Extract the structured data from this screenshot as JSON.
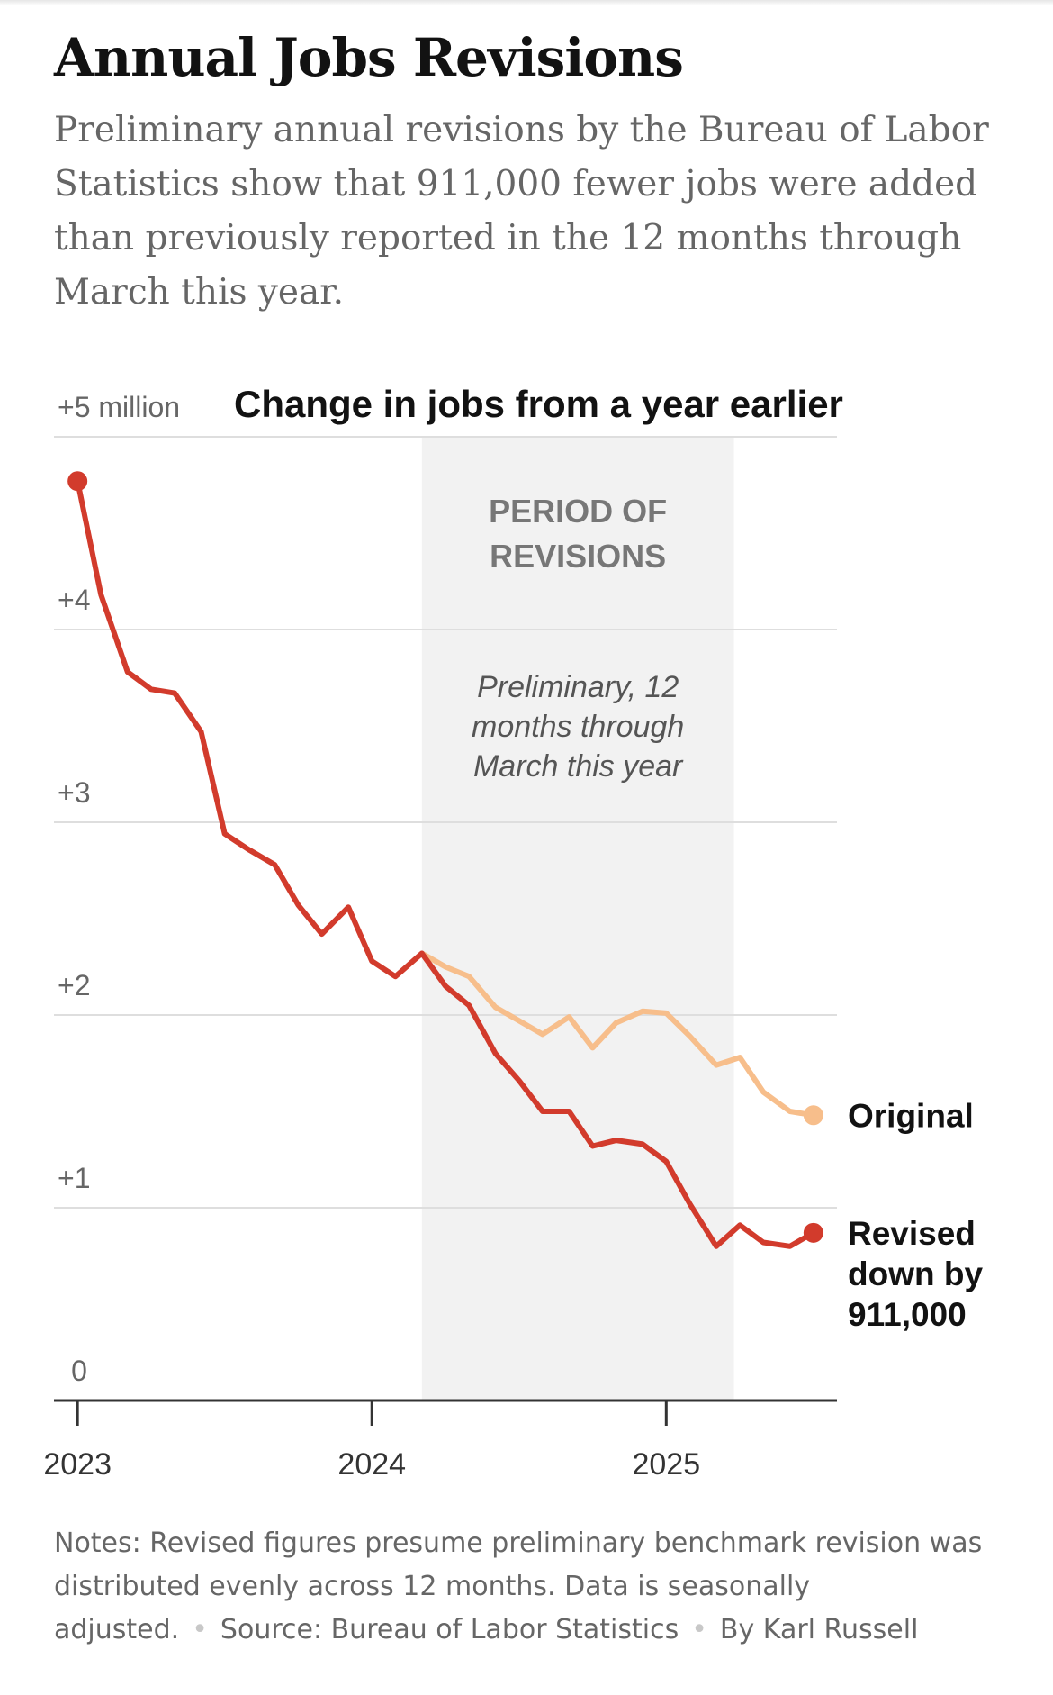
{
  "title": "Annual Jobs Revisions",
  "subtitle": "Preliminary annual revisions by the Bureau of Labor Statistics show that 911,000 fewer jobs were added than previously reported in the 12 months through March this year.",
  "notes": "Notes: Revised figures presume preliminary benchmark revision was distributed evenly across 12 months. Data is seasonally adjusted.",
  "source": "Source: Bureau of Labor Statistics",
  "byline": "By Karl Russell",
  "colors": {
    "revised": "#d23b2c",
    "original": "#f7be8b",
    "shade": "#f2f2f2",
    "grid": "#dedede",
    "axis": "#333333",
    "text": "#666666"
  },
  "chart_data": {
    "type": "line",
    "title": "Change in jobs from a year earlier",
    "ylim": [
      0,
      5
    ],
    "y_ticks": [
      {
        "value": 0,
        "label": "0"
      },
      {
        "value": 1,
        "label": "+1"
      },
      {
        "value": 2,
        "label": "+2"
      },
      {
        "value": 3,
        "label": "+3"
      },
      {
        "value": 4,
        "label": "+4"
      },
      {
        "value": 5,
        "label": "+5 million"
      }
    ],
    "x_range": [
      2022.92,
      2025.58
    ],
    "x_ticks": [
      {
        "value": 2023,
        "label": "2023"
      },
      {
        "value": 2024,
        "label": "2024"
      },
      {
        "value": 2025,
        "label": "2025"
      }
    ],
    "shaded_period": {
      "x_start": 2024.17,
      "x_end": 2025.23,
      "label_line1": "PERIOD OF",
      "label_line2": "REVISIONS",
      "note_line1": "Preliminary, 12",
      "note_line2": "months through",
      "note_line3": "March this year"
    },
    "series": [
      {
        "name": "Original",
        "label_lines": [
          "Original"
        ],
        "color": "#f7be8b",
        "x": [
          2024.17,
          2024.25,
          2024.33,
          2024.42,
          2024.5,
          2024.58,
          2024.67,
          2024.75,
          2024.83,
          2024.92,
          2025.0,
          2025.08,
          2025.17,
          2025.25,
          2025.33,
          2025.42,
          2025.5
        ],
        "y": [
          2.32,
          2.25,
          2.2,
          2.04,
          1.97,
          1.9,
          1.99,
          1.83,
          1.96,
          2.02,
          2.01,
          1.89,
          1.74,
          1.78,
          1.6,
          1.5,
          1.48
        ]
      },
      {
        "name": "Revised",
        "label_lines": [
          "Revised",
          "down by",
          "911,000"
        ],
        "color": "#d23b2c",
        "x": [
          2023.0,
          2023.08,
          2023.17,
          2023.25,
          2023.33,
          2023.42,
          2023.5,
          2023.58,
          2023.67,
          2023.75,
          2023.83,
          2023.92,
          2024.0,
          2024.08,
          2024.17,
          2024.25,
          2024.33,
          2024.42,
          2024.5,
          2024.58,
          2024.67,
          2024.75,
          2024.83,
          2024.92,
          2025.0,
          2025.08,
          2025.17,
          2025.25,
          2025.33,
          2025.42,
          2025.5
        ],
        "y": [
          4.77,
          4.18,
          3.78,
          3.69,
          3.67,
          3.47,
          2.94,
          2.86,
          2.78,
          2.57,
          2.42,
          2.56,
          2.28,
          2.2,
          2.32,
          2.15,
          2.05,
          1.8,
          1.66,
          1.5,
          1.5,
          1.32,
          1.35,
          1.33,
          1.24,
          1.02,
          0.8,
          0.91,
          0.82,
          0.8,
          0.87
        ]
      }
    ]
  }
}
